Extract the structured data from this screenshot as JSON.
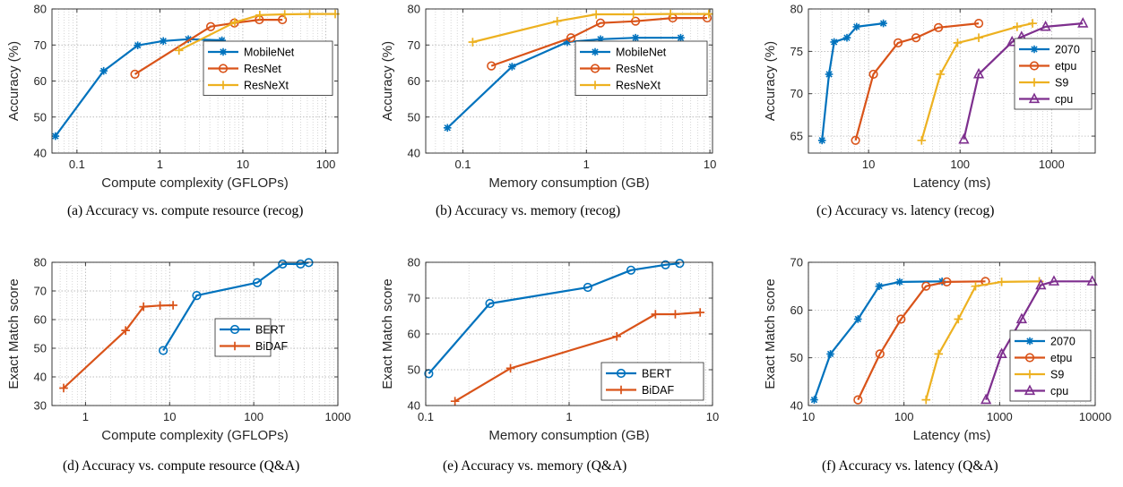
{
  "chart_data": [
    {
      "type": "line",
      "caption": "(a)  Accuracy vs. compute resource (recog)",
      "xlabel": "Compute complexity (GFLOPs)",
      "ylabel": "Accuracy (%)",
      "xscale": "log",
      "xlim": [
        0.05,
        140
      ],
      "ylim": [
        40,
        80
      ],
      "xticks": [
        0.1,
        1,
        10,
        100
      ],
      "xtick_labels": [
        "0.1",
        "1",
        "10",
        "100"
      ],
      "yticks": [
        40,
        50,
        60,
        70,
        80
      ],
      "grid": true,
      "legend_position": "lower-right",
      "series": [
        {
          "name": "MobileNet",
          "color": "#0072BD",
          "marker": "asterisk",
          "x": [
            0.055,
            0.21,
            0.54,
            1.1,
            2.2,
            5.6
          ],
          "y": [
            44.7,
            62.8,
            69.9,
            71.1,
            71.6,
            71.3
          ]
        },
        {
          "name": "ResNet",
          "color": "#D95319",
          "marker": "circle",
          "x": [
            0.5,
            4.1,
            7.9,
            15.8,
            30
          ],
          "y": [
            61.9,
            75.1,
            76.1,
            77.0,
            77.0
          ]
        },
        {
          "name": "ResNeXt",
          "color": "#EDB120",
          "marker": "plus",
          "x": [
            1.7,
            8.0,
            16.0,
            32.0,
            64.0,
            130.0
          ],
          "y": [
            68.5,
            76.3,
            78.3,
            78.5,
            78.6,
            78.6
          ]
        }
      ]
    },
    {
      "type": "line",
      "caption": "(b)  Accuracy vs. memory (recog)",
      "xlabel": "Memory consumption (GB)",
      "ylabel": "Accuracy (%)",
      "xscale": "log",
      "xlim": [
        0.05,
        10.5
      ],
      "ylim": [
        40,
        80
      ],
      "xticks": [
        0.1,
        1,
        10
      ],
      "xtick_labels": [
        "0.1",
        "1",
        "10"
      ],
      "yticks": [
        40,
        50,
        60,
        70,
        80
      ],
      "grid": true,
      "legend_position": "lower-right",
      "series": [
        {
          "name": "MobileNet",
          "color": "#0072BD",
          "marker": "asterisk",
          "x": [
            0.075,
            0.25,
            0.7,
            1.3,
            2.5,
            5.8
          ],
          "y": [
            47.0,
            64.0,
            70.8,
            71.6,
            72.0,
            72.0
          ]
        },
        {
          "name": "ResNet",
          "color": "#D95319",
          "marker": "circle",
          "x": [
            0.17,
            0.75,
            1.3,
            2.5,
            5.0,
            9.5
          ],
          "y": [
            64.2,
            72.0,
            76.1,
            76.6,
            77.5,
            77.5
          ]
        },
        {
          "name": "ResNeXt",
          "color": "#EDB120",
          "marker": "plus",
          "x": [
            0.12,
            0.58,
            1.2,
            2.4,
            4.8,
            9.8
          ],
          "y": [
            70.8,
            76.6,
            78.5,
            78.5,
            78.6,
            78.6
          ]
        }
      ]
    },
    {
      "type": "line",
      "caption": "(c)  Accuracy vs. latency (recog)",
      "xlabel": "Latency (ms)",
      "ylabel": "Accuracy (%)",
      "xscale": "log",
      "xlim": [
        2.2,
        3000
      ],
      "ylim": [
        63,
        80
      ],
      "xticks": [
        10,
        100,
        1000
      ],
      "xtick_labels": [
        "10",
        "100",
        "1000"
      ],
      "yticks": [
        65,
        70,
        75,
        80
      ],
      "grid": true,
      "legend_position": "lower-right",
      "series": [
        {
          "name": "2070",
          "color": "#0072BD",
          "marker": "asterisk",
          "x": [
            3.1,
            3.7,
            4.2,
            5.8,
            7.4,
            14.5
          ],
          "y": [
            64.5,
            72.3,
            76.1,
            76.6,
            77.9,
            78.3
          ]
        },
        {
          "name": "etpu",
          "color": "#D95319",
          "marker": "circle",
          "x": [
            7.2,
            11.3,
            21,
            33,
            58,
            160
          ],
          "y": [
            64.5,
            72.3,
            76.0,
            76.6,
            77.8,
            78.3
          ]
        },
        {
          "name": "S9",
          "color": "#EDB120",
          "marker": "plus",
          "x": [
            38,
            61,
            94,
            160,
            420,
            620
          ],
          "y": [
            64.5,
            72.3,
            76.0,
            76.6,
            77.9,
            78.3
          ]
        },
        {
          "name": "cpu",
          "color": "#7E2F8E",
          "marker": "triangle",
          "x": [
            110,
            160,
            370,
            470,
            860,
            2200
          ],
          "y": [
            64.6,
            72.3,
            76.1,
            76.7,
            77.9,
            78.3
          ]
        }
      ]
    },
    {
      "type": "line",
      "caption": "(d)  Accuracy vs. compute resource (Q&A)",
      "xlabel": "Compute complexity (GFLOPs)",
      "ylabel": "Exact Match score",
      "xscale": "log",
      "xlim": [
        0.4,
        1000
      ],
      "ylim": [
        30,
        80
      ],
      "xticks": [
        1,
        10,
        100,
        1000
      ],
      "xtick_labels": [
        "1",
        "10",
        "100",
        "1000"
      ],
      "yticks": [
        30,
        40,
        50,
        60,
        70,
        80
      ],
      "grid": true,
      "legend_position": "center-right",
      "series": [
        {
          "name": "BERT",
          "color": "#0072BD",
          "marker": "circle",
          "x": [
            8.4,
            21,
            110,
            220,
            360,
            450
          ],
          "y": [
            49.2,
            68.4,
            72.9,
            79.4,
            79.4,
            79.9
          ]
        },
        {
          "name": "BiDAF",
          "color": "#D95319",
          "marker": "plus",
          "x": [
            0.55,
            3.0,
            4.9,
            7.7,
            11.0
          ],
          "y": [
            36.1,
            56.2,
            64.5,
            64.9,
            65.0
          ]
        }
      ]
    },
    {
      "type": "line",
      "caption": "(e)  Accuracy vs. memory (Q&A)",
      "xlabel": "Memory consumption (GB)",
      "ylabel": "Exact Match score",
      "xscale": "log",
      "xlim": [
        0.1,
        10
      ],
      "ylim": [
        40,
        80
      ],
      "xticks": [
        0.1,
        1,
        10
      ],
      "xtick_labels": [
        "0.1",
        "1",
        "10"
      ],
      "yticks": [
        40,
        50,
        60,
        70,
        80
      ],
      "grid": true,
      "legend_position": "lower-right",
      "series": [
        {
          "name": "BERT",
          "color": "#0072BD",
          "marker": "circle",
          "x": [
            0.105,
            0.28,
            1.35,
            2.7,
            4.7,
            5.9
          ],
          "y": [
            48.9,
            68.5,
            73.0,
            77.8,
            79.3,
            79.7
          ]
        },
        {
          "name": "BiDAF",
          "color": "#D95319",
          "marker": "plus",
          "x": [
            0.16,
            0.39,
            2.15,
            4.0,
            5.5,
            8.2
          ],
          "y": [
            41.2,
            50.4,
            59.3,
            65.5,
            65.5,
            66.0
          ]
        }
      ]
    },
    {
      "type": "line",
      "caption": "(f)  Accuracy vs. latency (Q&A)",
      "xlabel": "Latency (ms)",
      "ylabel": "Exact Match score",
      "xscale": "log",
      "xlim": [
        10,
        10000
      ],
      "ylim": [
        40,
        70
      ],
      "xticks": [
        10,
        100,
        1000,
        10000
      ],
      "xtick_labels": [
        "10",
        "100",
        "1000",
        "10000"
      ],
      "yticks": [
        40,
        50,
        60,
        70
      ],
      "grid": true,
      "legend_position": "lower-right",
      "series": [
        {
          "name": "2070",
          "color": "#0072BD",
          "marker": "asterisk",
          "x": [
            11.5,
            17,
            33,
            55,
            90,
            250
          ],
          "y": [
            41.2,
            50.8,
            58.1,
            65.0,
            65.9,
            66.0
          ]
        },
        {
          "name": "etpu",
          "color": "#D95319",
          "marker": "circle",
          "x": [
            33,
            56,
            93,
            170,
            280,
            710
          ],
          "y": [
            41.2,
            50.8,
            58.1,
            65.0,
            65.9,
            66.0
          ]
        },
        {
          "name": "S9",
          "color": "#EDB120",
          "marker": "plus",
          "x": [
            170,
            230,
            370,
            560,
            1050,
            2600
          ],
          "y": [
            41.2,
            50.8,
            58.1,
            65.0,
            65.9,
            66.0
          ]
        },
        {
          "name": "cpu",
          "color": "#7E2F8E",
          "marker": "triangle",
          "x": [
            720,
            1050,
            1700,
            2700,
            3700,
            9300
          ],
          "y": [
            41.2,
            50.8,
            58.1,
            65.2,
            66.0,
            66.0
          ]
        }
      ]
    }
  ]
}
